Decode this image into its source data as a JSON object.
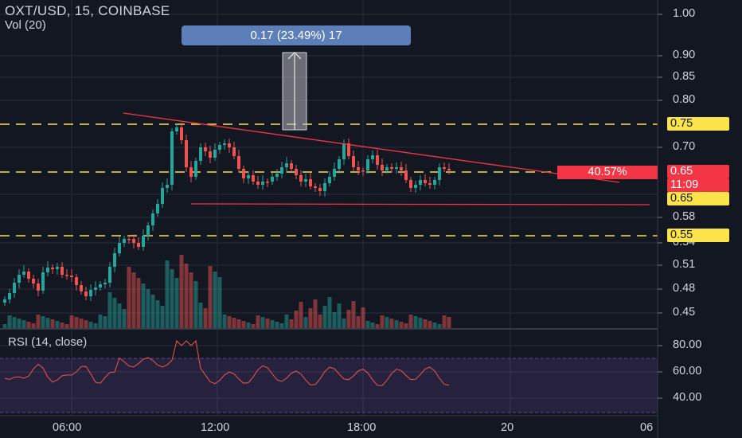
{
  "header": {
    "title": "OXT/USD, 15, COINBASE",
    "volume_label": "Vol (20)"
  },
  "measure": {
    "label": "0.17 (23.49%) 17"
  },
  "price_axis": {
    "ticks": [
      "1.00",
      "0.90",
      "0.85",
      "0.80",
      "0.70",
      "0.58",
      "0.54",
      "0.51",
      "0.48",
      "0.45"
    ]
  },
  "price_tags": {
    "level_075": "0.75",
    "current_price": "0.65",
    "countdown": "11:09",
    "level_065": "0.65",
    "level_055": "0.55",
    "percent_tag": "40.57%"
  },
  "rsi": {
    "label": "RSI (14, close)",
    "ticks": [
      "80.00",
      "60.00",
      "40.00"
    ]
  },
  "time_axis": {
    "labels": [
      "06:00",
      "12:00",
      "18:00",
      "20",
      "06"
    ]
  },
  "colors": {
    "background": "#131722",
    "bull": "#26a69a",
    "bear": "#ef5350",
    "level_line": "#fbe34a",
    "trend_line": "#f23645",
    "rsi_line": "#f0544f",
    "rsi_band": "#7e57c2",
    "measure_box": "#5d7fb9"
  }
}
